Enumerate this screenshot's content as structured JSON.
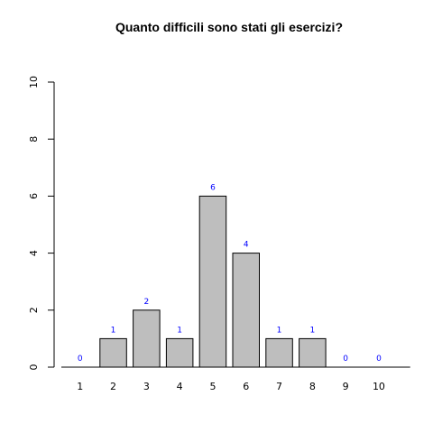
{
  "chart_data": {
    "type": "bar",
    "title": "Quanto difficili sono stati gli esercizi?",
    "categories": [
      "1",
      "2",
      "3",
      "4",
      "5",
      "6",
      "7",
      "8",
      "9",
      "10"
    ],
    "values": [
      0,
      1,
      2,
      1,
      6,
      4,
      1,
      1,
      0,
      0
    ],
    "xlabel": "",
    "ylabel": "",
    "ylim": [
      0,
      10
    ],
    "yticks": [
      0,
      2,
      4,
      6,
      8,
      10
    ],
    "grid": false,
    "legend": "none",
    "bar_color": "#bebebe",
    "bar_border_color": "#000000",
    "data_label_color": "#0000ff"
  }
}
